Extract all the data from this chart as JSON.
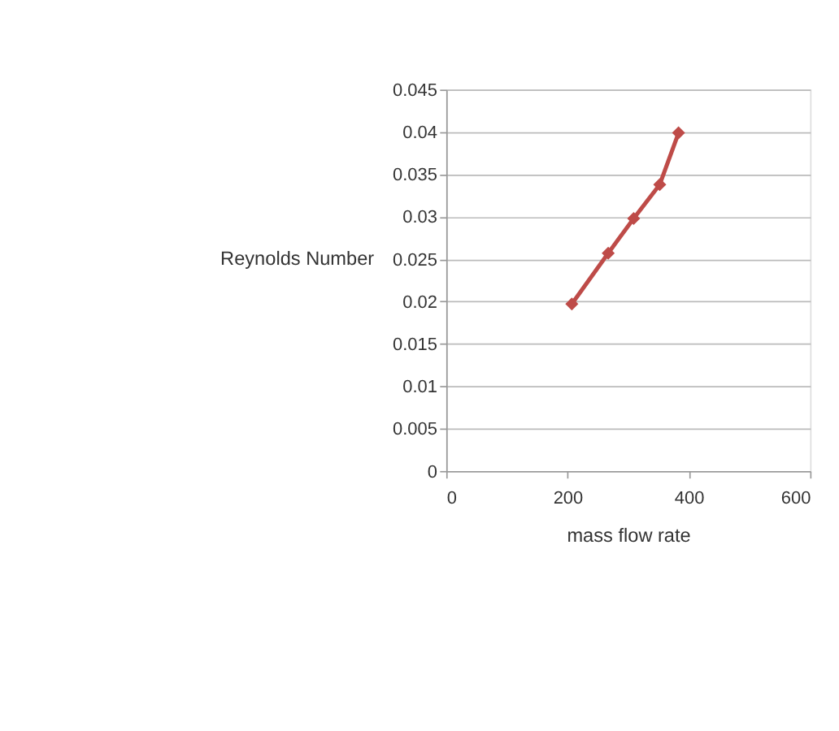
{
  "chart_data": {
    "type": "line",
    "xlabel": "mass flow rate",
    "ylabel": "Reynolds Number",
    "x": [
      207,
      267,
      309,
      352,
      383
    ],
    "series": [
      {
        "color": "#be4b48",
        "values": [
          0.0197,
          0.0257,
          0.0298,
          0.0338,
          0.0399
        ]
      }
    ],
    "xlim": [
      0,
      600
    ],
    "xticks": [
      0,
      200,
      400,
      600
    ],
    "ylim": [
      0,
      0.045
    ],
    "yticks": [
      0,
      0.005,
      0.01,
      0.015,
      0.02,
      0.025,
      0.03,
      0.035,
      0.04,
      0.045
    ],
    "grid": "y",
    "marker": "diamond",
    "line_style": "solid"
  }
}
